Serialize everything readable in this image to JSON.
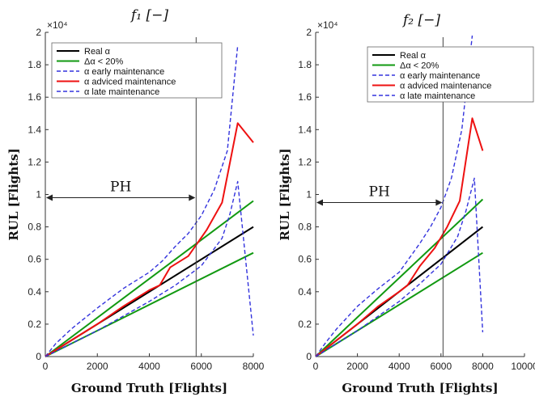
{
  "chart_data": [
    {
      "type": "line",
      "title": "f₁ [−]",
      "xlabel": "Ground Truth [Flights]",
      "ylabel": "RUL [Flights]",
      "y_multiplier": "×10⁴",
      "xlim": [
        0,
        8000
      ],
      "ylim": [
        0,
        20000
      ],
      "xticks": [
        "0",
        "2000",
        "4000",
        "6000",
        "8000"
      ],
      "yticks": [
        "0",
        "0.2",
        "0.4",
        "0.6",
        "0.8",
        "1",
        "1.2",
        "1.4",
        "1.6",
        "1.8",
        "2"
      ],
      "grid": false,
      "legend_position": "top-left",
      "annotation": {
        "text": "PH",
        "x_start": 0,
        "x_end": 5800,
        "y": 9800,
        "vline_x": 5800
      },
      "series": [
        {
          "name": "Real α",
          "color": "#000000",
          "dash": "solid",
          "x": [
            0,
            8000
          ],
          "y": [
            0,
            8000
          ]
        },
        {
          "name": "Δα < 20%",
          "color": "#119911",
          "dash": "solid",
          "x": [
            0,
            8000
          ],
          "y": [
            0,
            9600
          ]
        },
        {
          "name": "",
          "color": "#119911",
          "dash": "solid",
          "x": [
            0,
            8000
          ],
          "y": [
            0,
            6400
          ]
        },
        {
          "name": "α early maintenance",
          "color": "#3333dd",
          "dash": "dashed",
          "x": [
            0,
            400,
            1000,
            2000,
            3000,
            4000,
            4500,
            5000,
            5500,
            6000,
            6500,
            7000,
            7400
          ],
          "y": [
            0,
            800,
            1700,
            3000,
            4200,
            5200,
            5900,
            6800,
            7600,
            8700,
            10300,
            12700,
            19200
          ]
        },
        {
          "name": "α adviced maintenance",
          "color": "#ee1111",
          "dash": "solid",
          "x": [
            0,
            1000,
            2000,
            3000,
            4000,
            4400,
            4800,
            5500,
            6200,
            6800,
            7400,
            8000
          ],
          "y": [
            0,
            1000,
            2000,
            3100,
            4100,
            4400,
            5500,
            6200,
            7800,
            9500,
            14400,
            13200
          ]
        },
        {
          "name": "α late maintenance",
          "color": "#3333dd",
          "dash": "dashed",
          "x": [
            0,
            1000,
            2000,
            3000,
            4000,
            5000,
            6000,
            6800,
            7100,
            7400,
            8000
          ],
          "y": [
            0,
            800,
            1600,
            2500,
            3400,
            4400,
            5600,
            7300,
            8800,
            10800,
            1300
          ]
        }
      ]
    },
    {
      "type": "line",
      "title": "f₂ [−]",
      "xlabel": "Ground Truth [Flights]",
      "ylabel": "RUL [Flights]",
      "y_multiplier": "×10⁴",
      "xlim": [
        0,
        10000
      ],
      "ylim": [
        0,
        20000
      ],
      "xticks": [
        "0",
        "2000",
        "4000",
        "6000",
        "8000",
        "10000"
      ],
      "yticks": [
        "0",
        "0.2",
        "0.4",
        "0.6",
        "0.8",
        "1",
        "1.2",
        "1.4",
        "1.6",
        "1.8",
        "2"
      ],
      "grid": false,
      "legend_position": "top-right",
      "annotation": {
        "text": "PH",
        "x_start": 0,
        "x_end": 6100,
        "y": 9500,
        "vline_x": 6100
      },
      "series": [
        {
          "name": "Real α",
          "color": "#000000",
          "dash": "solid",
          "x": [
            0,
            8000
          ],
          "y": [
            0,
            8000
          ]
        },
        {
          "name": "Δα < 20%",
          "color": "#119911",
          "dash": "solid",
          "x": [
            0,
            8000
          ],
          "y": [
            0,
            9700
          ]
        },
        {
          "name": "",
          "color": "#119911",
          "dash": "solid",
          "x": [
            0,
            8000
          ],
          "y": [
            0,
            6400
          ]
        },
        {
          "name": "α early maintenance",
          "color": "#3333dd",
          "dash": "dashed",
          "x": [
            0,
            500,
            1000,
            2000,
            3000,
            4000,
            4500,
            5000,
            5500,
            6000,
            6500,
            7000,
            7500
          ],
          "y": [
            0,
            900,
            1700,
            3100,
            4200,
            5200,
            6100,
            7000,
            8000,
            9200,
            11000,
            14000,
            19800
          ]
        },
        {
          "name": "α adviced maintenance",
          "color": "#ee1111",
          "dash": "solid",
          "x": [
            0,
            1000,
            2000,
            3000,
            4000,
            4400,
            5000,
            5700,
            6300,
            6900,
            7500,
            8000
          ],
          "y": [
            0,
            1000,
            2000,
            3100,
            4000,
            4400,
            5600,
            6700,
            8000,
            9600,
            14700,
            12700
          ]
        },
        {
          "name": "α late maintenance",
          "color": "#3333dd",
          "dash": "dashed",
          "x": [
            0,
            1000,
            2000,
            3000,
            4000,
            5000,
            6000,
            6800,
            7200,
            7600,
            8000
          ],
          "y": [
            0,
            800,
            1600,
            2500,
            3400,
            4500,
            5700,
            7400,
            9000,
            11000,
            1500
          ]
        }
      ]
    }
  ]
}
